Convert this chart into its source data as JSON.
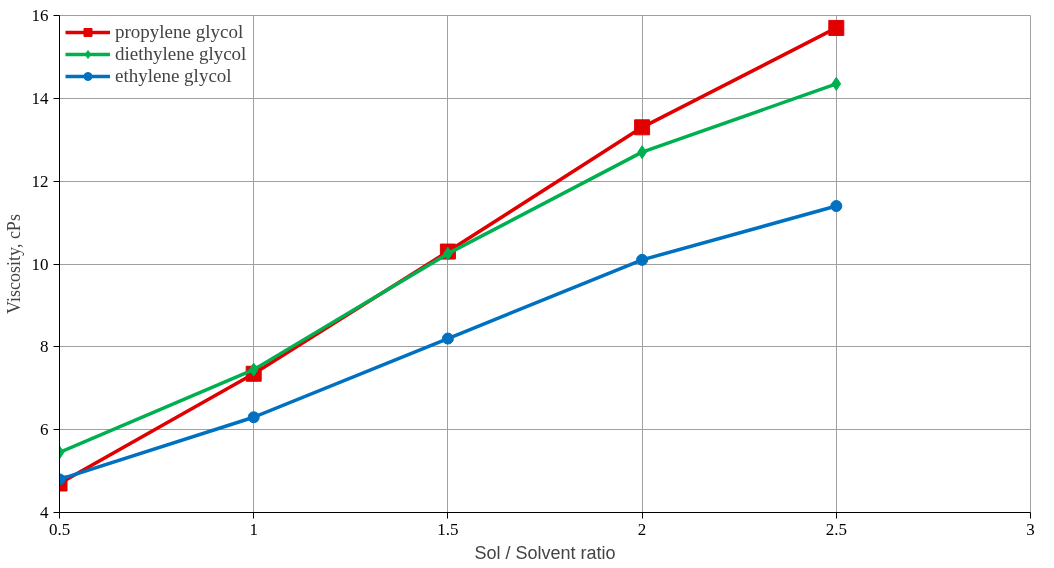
{
  "chart_data": {
    "type": "line",
    "xlabel": "Sol / Solvent ratio",
    "ylabel": "Viscosity, cPs",
    "x": [
      0.5,
      1,
      1.5,
      2,
      2.5
    ],
    "series": [
      {
        "name": "propylene glycol",
        "color": "#e00000",
        "marker": "square",
        "values": [
          4.7,
          7.35,
          10.3,
          13.3,
          15.7
        ]
      },
      {
        "name": "diethylene glycol",
        "color": "#00b050",
        "marker": "diamond",
        "values": [
          5.45,
          7.45,
          10.25,
          12.7,
          14.35
        ]
      },
      {
        "name": "ethylene glycol",
        "color": "#0070c0",
        "marker": "circle",
        "values": [
          4.8,
          6.3,
          8.2,
          10.1,
          11.4
        ]
      }
    ],
    "xlim": [
      0.5,
      3
    ],
    "xticks": [
      0.5,
      1,
      1.5,
      2,
      2.5,
      3
    ],
    "ylim": [
      4,
      16
    ],
    "yticks": [
      4,
      6,
      8,
      10,
      12,
      14,
      16
    ],
    "grid": true,
    "legend": "top left",
    "line_style": "solid"
  }
}
